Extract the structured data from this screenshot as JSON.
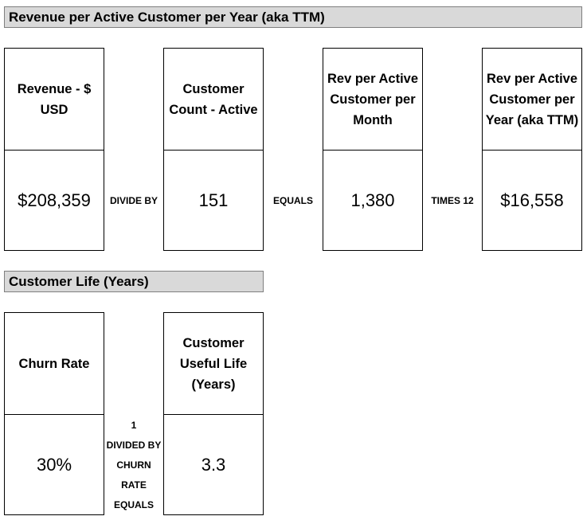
{
  "section1": {
    "title": "Revenue per Active Customer per Year (aka TTM)",
    "boxes": [
      {
        "header": "Revenue - $ USD",
        "value": "$208,359"
      },
      {
        "header": "Customer Count - Active",
        "value": "151"
      },
      {
        "header": "Rev per Active Customer per Month",
        "value": "1,380"
      },
      {
        "header": "Rev per Active Customer per Year (aka TTM)",
        "value": "$16,558"
      }
    ],
    "operators": [
      "DIVIDE BY",
      "EQUALS",
      "TIMES 12"
    ]
  },
  "section2": {
    "title": "Customer Life (Years)",
    "boxes": [
      {
        "header": "Churn Rate",
        "value": "30%"
      },
      {
        "header": "Customer Useful Life (Years)",
        "value": "3.3"
      }
    ],
    "operator_lines": [
      "1",
      "DIVIDED BY",
      "CHURN",
      "RATE",
      "EQUALS"
    ]
  }
}
